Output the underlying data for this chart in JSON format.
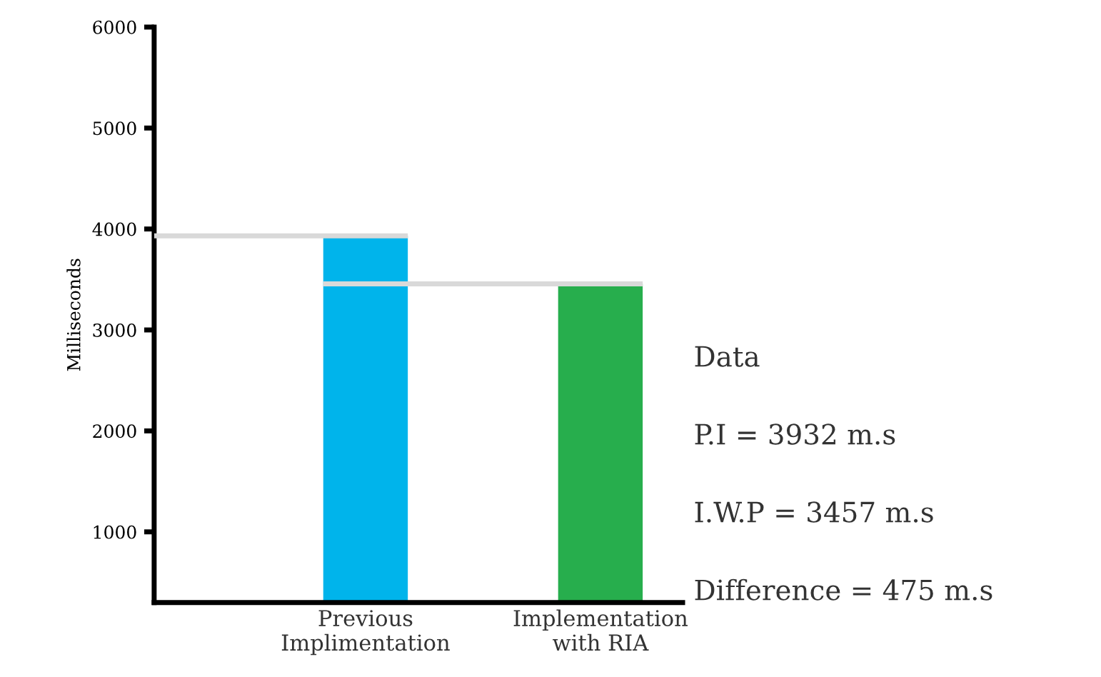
{
  "chart_data": {
    "type": "bar",
    "ylabel": "Milliseconds",
    "categories": [
      "Previous\nImplimentation",
      "Implementation\nwith RIA"
    ],
    "values": [
      3932,
      3457
    ],
    "colors": [
      "#00b4eb",
      "#27ae4d"
    ],
    "ylim": [
      300,
      6000
    ],
    "yticks": [
      1000,
      2000,
      3000,
      4000,
      5000,
      6000
    ],
    "grid": false,
    "ref_lines": [
      {
        "axis": "y",
        "value": 3932,
        "color": "#d9d9d9"
      },
      {
        "axis": "y",
        "value": 3457,
        "color": "#d9d9d9"
      }
    ],
    "annotations": [
      "Data",
      "P.I = 3932 m.s",
      "I.W.P = 3457 m.s",
      "Difference = 475 m.s"
    ]
  }
}
